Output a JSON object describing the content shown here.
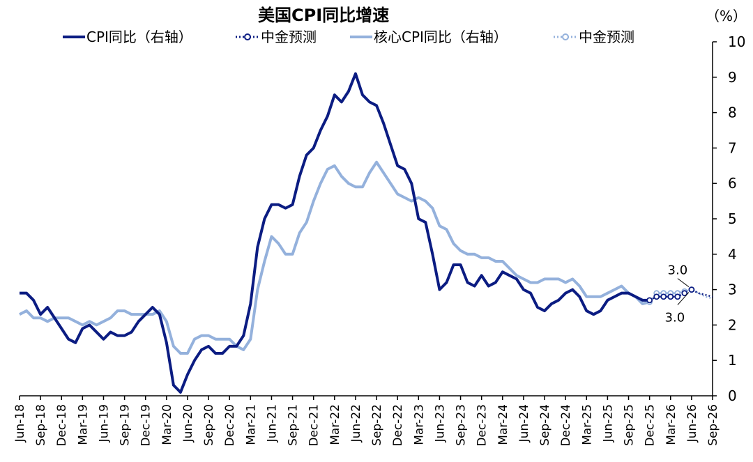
{
  "chart_data": {
    "type": "line",
    "title": "美国CPI同比增速",
    "unit_label": "（%）",
    "ylim": [
      0,
      10
    ],
    "yticks": [
      "0",
      "1",
      "2",
      "3",
      "4",
      "5",
      "6",
      "7",
      "8",
      "9",
      "10"
    ],
    "xticks": [
      "Jun-18",
      "Sep-18",
      "Dec-18",
      "Mar-19",
      "Jun-19",
      "Sep-19",
      "Dec-19",
      "Mar-20",
      "Jun-20",
      "Sep-20",
      "Dec-20",
      "Mar-21",
      "Jun-21",
      "Sep-21",
      "Dec-21",
      "Mar-22",
      "Jun-22",
      "Sep-22",
      "Dec-22",
      "Mar-23",
      "Jun-23",
      "Sep-23",
      "Dec-23",
      "Mar-24",
      "Jun-24",
      "Sep-24",
      "Dec-24",
      "Mar-25",
      "Jun-25",
      "Sep-25",
      "Dec-25",
      "Mar-26",
      "Jun-26",
      "Sep-26"
    ],
    "x_range": [
      "2018-06",
      "2026-09"
    ],
    "legend": [
      {
        "label": "CPI同比（右轴）",
        "color": "#0b1c82",
        "style": "solid"
      },
      {
        "label": "中金预测",
        "color": "#0b1c82",
        "style": "dotted-marker"
      },
      {
        "label": "核心CPI同比（右轴）",
        "color": "#94b1dc",
        "style": "solid"
      },
      {
        "label": "中金预测",
        "color": "#94b1dc",
        "style": "dotted-marker"
      }
    ],
    "series": [
      {
        "name": "CPI同比（右轴）",
        "color": "#0b1c82",
        "start": "2018-06",
        "values": [
          2.9,
          2.9,
          2.7,
          2.3,
          2.5,
          2.2,
          1.9,
          1.6,
          1.5,
          1.9,
          2.0,
          1.8,
          1.6,
          1.8,
          1.7,
          1.7,
          1.8,
          2.1,
          2.3,
          2.5,
          2.3,
          1.5,
          0.3,
          0.1,
          0.6,
          1.0,
          1.3,
          1.4,
          1.2,
          1.2,
          1.4,
          1.4,
          1.7,
          2.6,
          4.2,
          5.0,
          5.4,
          5.4,
          5.3,
          5.4,
          6.2,
          6.8,
          7.0,
          7.5,
          7.9,
          8.5,
          8.3,
          8.6,
          9.1,
          8.5,
          8.3,
          8.2,
          7.7,
          7.1,
          6.5,
          6.4,
          6.0,
          5.0,
          4.9,
          4.0,
          3.0,
          3.2,
          3.7,
          3.7,
          3.2,
          3.1,
          3.4,
          3.1,
          3.2,
          3.5,
          3.4,
          3.3,
          3.0,
          2.9,
          2.5,
          2.4,
          2.6,
          2.7,
          2.9,
          3.0,
          2.8,
          2.4,
          2.3,
          2.4,
          2.7,
          2.8,
          2.9,
          2.9,
          2.8,
          2.7,
          2.7
        ]
      },
      {
        "name": "中金预测",
        "color": "#0b1c82",
        "start": "2025-12",
        "values": [
          2.7,
          2.8,
          2.8,
          2.8,
          2.8,
          2.9,
          3.0,
          2.9,
          2.85,
          2.8
        ]
      },
      {
        "name": "核心CPI同比（右轴）",
        "color": "#94b1dc",
        "start": "2018-06",
        "values": [
          2.3,
          2.4,
          2.2,
          2.2,
          2.1,
          2.2,
          2.2,
          2.2,
          2.1,
          2.0,
          2.1,
          2.0,
          2.1,
          2.2,
          2.4,
          2.4,
          2.3,
          2.3,
          2.3,
          2.3,
          2.4,
          2.1,
          1.4,
          1.2,
          1.2,
          1.6,
          1.7,
          1.7,
          1.6,
          1.6,
          1.6,
          1.4,
          1.3,
          1.6,
          3.0,
          3.8,
          4.5,
          4.3,
          4.0,
          4.0,
          4.6,
          4.9,
          5.5,
          6.0,
          6.4,
          6.5,
          6.2,
          6.0,
          5.9,
          5.9,
          6.3,
          6.6,
          6.3,
          6.0,
          5.7,
          5.6,
          5.5,
          5.6,
          5.5,
          5.3,
          4.8,
          4.7,
          4.3,
          4.1,
          4.0,
          4.0,
          3.9,
          3.9,
          3.8,
          3.8,
          3.6,
          3.4,
          3.3,
          3.2,
          3.2,
          3.3,
          3.3,
          3.3,
          3.2,
          3.3,
          3.1,
          2.8,
          2.8,
          2.8,
          2.9,
          3.0,
          3.1,
          2.9,
          2.8,
          2.6,
          2.65
        ]
      },
      {
        "name": "中金预测",
        "color": "#94b1dc",
        "start": "2025-12",
        "values": [
          2.65,
          2.9,
          2.9,
          2.9,
          2.9,
          2.95,
          3.0,
          2.9,
          2.8,
          2.75
        ]
      }
    ],
    "annotations": [
      {
        "text": "3.0",
        "series": "核心CPI同比（右轴）",
        "date": "2026-06",
        "value": 3.0,
        "position": "above"
      },
      {
        "text": "3.0",
        "series": "CPI同比（右轴）",
        "date": "2026-06",
        "value": 3.0,
        "position": "below"
      }
    ]
  }
}
